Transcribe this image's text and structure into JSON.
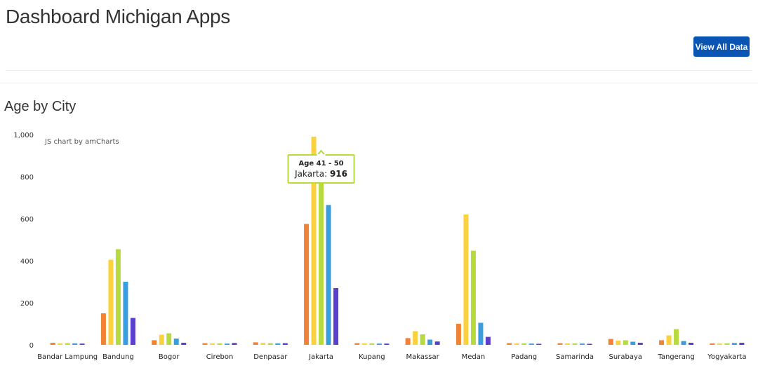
{
  "header": {
    "title": "Dashboard Michigan Apps",
    "view_all_label": "View All Data"
  },
  "section": {
    "title": "Age by City"
  },
  "chart_data": {
    "type": "bar",
    "credit": "JS chart by amCharts",
    "ylim": [
      0,
      1000
    ],
    "yticks": [
      0,
      200,
      400,
      600,
      800,
      1000
    ],
    "ytick_labels": [
      "0",
      "200",
      "400",
      "600",
      "800",
      "1,000"
    ],
    "categories": [
      "Bandar Lampung",
      "Bandung",
      "Bogor",
      "Cirebon",
      "Denpasar",
      "Jakarta",
      "Kupang",
      "Makassar",
      "Medan",
      "Padang",
      "Samarinda",
      "Surabaya",
      "Tangerang",
      "Yogyakarta"
    ],
    "series": [
      {
        "color": "#f08335",
        "values": [
          10,
          150,
          22,
          8,
          12,
          575,
          8,
          32,
          100,
          8,
          8,
          28,
          22,
          7
        ]
      },
      {
        "color": "#fcd13f",
        "values": [
          7,
          405,
          48,
          7,
          9,
          990,
          7,
          65,
          620,
          7,
          7,
          20,
          45,
          6
        ]
      },
      {
        "color": "#b7da3f",
        "values": [
          8,
          455,
          55,
          7,
          8,
          916,
          7,
          50,
          448,
          7,
          7,
          22,
          75,
          7
        ]
      },
      {
        "color": "#3a9ddd",
        "values": [
          7,
          300,
          30,
          6,
          7,
          665,
          6,
          25,
          105,
          6,
          6,
          15,
          18,
          9
        ]
      },
      {
        "color": "#5b3fcf",
        "values": [
          6,
          128,
          10,
          9,
          8,
          270,
          6,
          16,
          38,
          5,
          5,
          10,
          10,
          10
        ]
      }
    ],
    "tooltip": {
      "title": "Age 41 - 50",
      "category": "Jakarta",
      "separator": ": ",
      "value": "916",
      "border_color": "#b7da3f"
    }
  }
}
